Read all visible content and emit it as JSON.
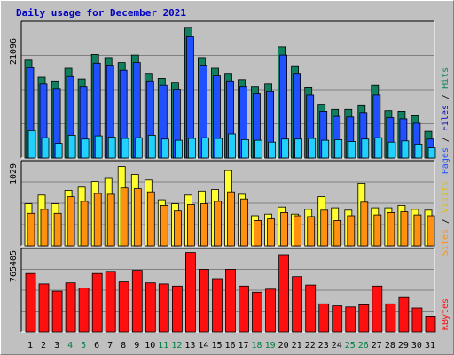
{
  "title": "Daily usage for December 2021",
  "colors": {
    "pages": "#2050ff",
    "files": "#20d0ff",
    "hits": "#108060",
    "visits": "#ffff30",
    "sites": "#ff9010",
    "kbytes": "#ff1010",
    "weekend_label": "#008040",
    "weekday_label": "#000000",
    "title": "#0000c0"
  },
  "panels": {
    "hits": {
      "max_label": "21096",
      "legend": [
        {
          "text": "Pages",
          "color": "#2050ff"
        },
        {
          "text": " / ",
          "color": "#000000"
        },
        {
          "text": "Files",
          "color": "#0000c0"
        },
        {
          "text": " / ",
          "color": "#000000"
        },
        {
          "text": "Hits",
          "color": "#108060"
        }
      ]
    },
    "visits": {
      "max_label": "1029",
      "legend": [
        {
          "text": "Sites",
          "color": "#ff9010"
        },
        {
          "text": " / ",
          "color": "#000000"
        },
        {
          "text": "Visits",
          "color": "#e0c000"
        }
      ]
    },
    "kbytes": {
      "max_label": "765405",
      "legend": [
        {
          "text": "KBytes",
          "color": "#ff1010"
        }
      ]
    }
  },
  "chart_data": {
    "type": "bar",
    "title": "Daily usage for December 2021",
    "categories": [
      "1",
      "2",
      "3",
      "4",
      "5",
      "6",
      "7",
      "8",
      "9",
      "10",
      "11",
      "12",
      "13",
      "14",
      "15",
      "16",
      "17",
      "18",
      "19",
      "20",
      "21",
      "22",
      "23",
      "24",
      "25",
      "26",
      "27",
      "28",
      "29",
      "30",
      "31"
    ],
    "weekend_days": [
      "4",
      "5",
      "11",
      "12",
      "18",
      "19",
      "25",
      "26"
    ],
    "panels": [
      {
        "name": "hits",
        "ymax": 21096,
        "series": [
          {
            "name": "Hits",
            "values": [
              15500,
              12800,
              12200,
              14200,
              12500,
              16400,
              15900,
              15100,
              16300,
              13400,
              12600,
              12000,
              20700,
              15900,
              14200,
              13400,
              12400,
              11300,
              11700,
              17600,
              14600,
              11200,
              8500,
              7700,
              7700,
              8400,
              11500,
              7500,
              7400,
              6700,
              4200
            ]
          },
          {
            "name": "Files",
            "values": [
              14300,
              11700,
              11000,
              12900,
              11300,
              15000,
              14700,
              13900,
              15100,
              12200,
              11500,
              10900,
              19200,
              14700,
              13000,
              12200,
              11300,
              10200,
              10500,
              16300,
              13400,
              10000,
              7400,
              6600,
              6500,
              7200,
              10000,
              6400,
              6200,
              5500,
              3000
            ]
          },
          {
            "name": "Pages",
            "values": [
              4300,
              3200,
              2300,
              3600,
              3000,
              3500,
              3300,
              3100,
              3200,
              3600,
              3000,
              2800,
              3100,
              3200,
              3100,
              3800,
              2900,
              2800,
              2500,
              3000,
              3000,
              3100,
              2800,
              2900,
              2600,
              3000,
              3200,
              2500,
              2700,
              2200,
              1600
            ]
          }
        ]
      },
      {
        "name": "visits",
        "ymax": 1029,
        "series": [
          {
            "name": "Visits",
            "values": [
              530,
              640,
              530,
              700,
              740,
              810,
              850,
              1000,
              900,
              830,
              580,
              530,
              640,
              690,
              710,
              950,
              650,
              380,
              400,
              490,
              400,
              460,
              620,
              480,
              450,
              790,
              480,
              480,
              510,
              460,
              450
            ]
          },
          {
            "name": "Sites",
            "values": [
              410,
              460,
              410,
              620,
              560,
              660,
              650,
              730,
              720,
              680,
              510,
              440,
              520,
              530,
              560,
              680,
              590,
              320,
              340,
              420,
              380,
              370,
              450,
              320,
              380,
              550,
              390,
              420,
              430,
              390,
              380
            ]
          }
        ]
      },
      {
        "name": "kbytes",
        "ymax": 765405,
        "series": [
          {
            "name": "KBytes",
            "values": [
              560000,
              460000,
              390000,
              470000,
              420000,
              560000,
              580000,
              480000,
              590000,
              470000,
              460000,
              440000,
              760000,
              600000,
              510000,
              600000,
              440000,
              380000,
              410000,
              740000,
              530000,
              450000,
              270000,
              250000,
              240000,
              260000,
              440000,
              270000,
              330000,
              230000,
              150000
            ]
          }
        ]
      }
    ]
  }
}
